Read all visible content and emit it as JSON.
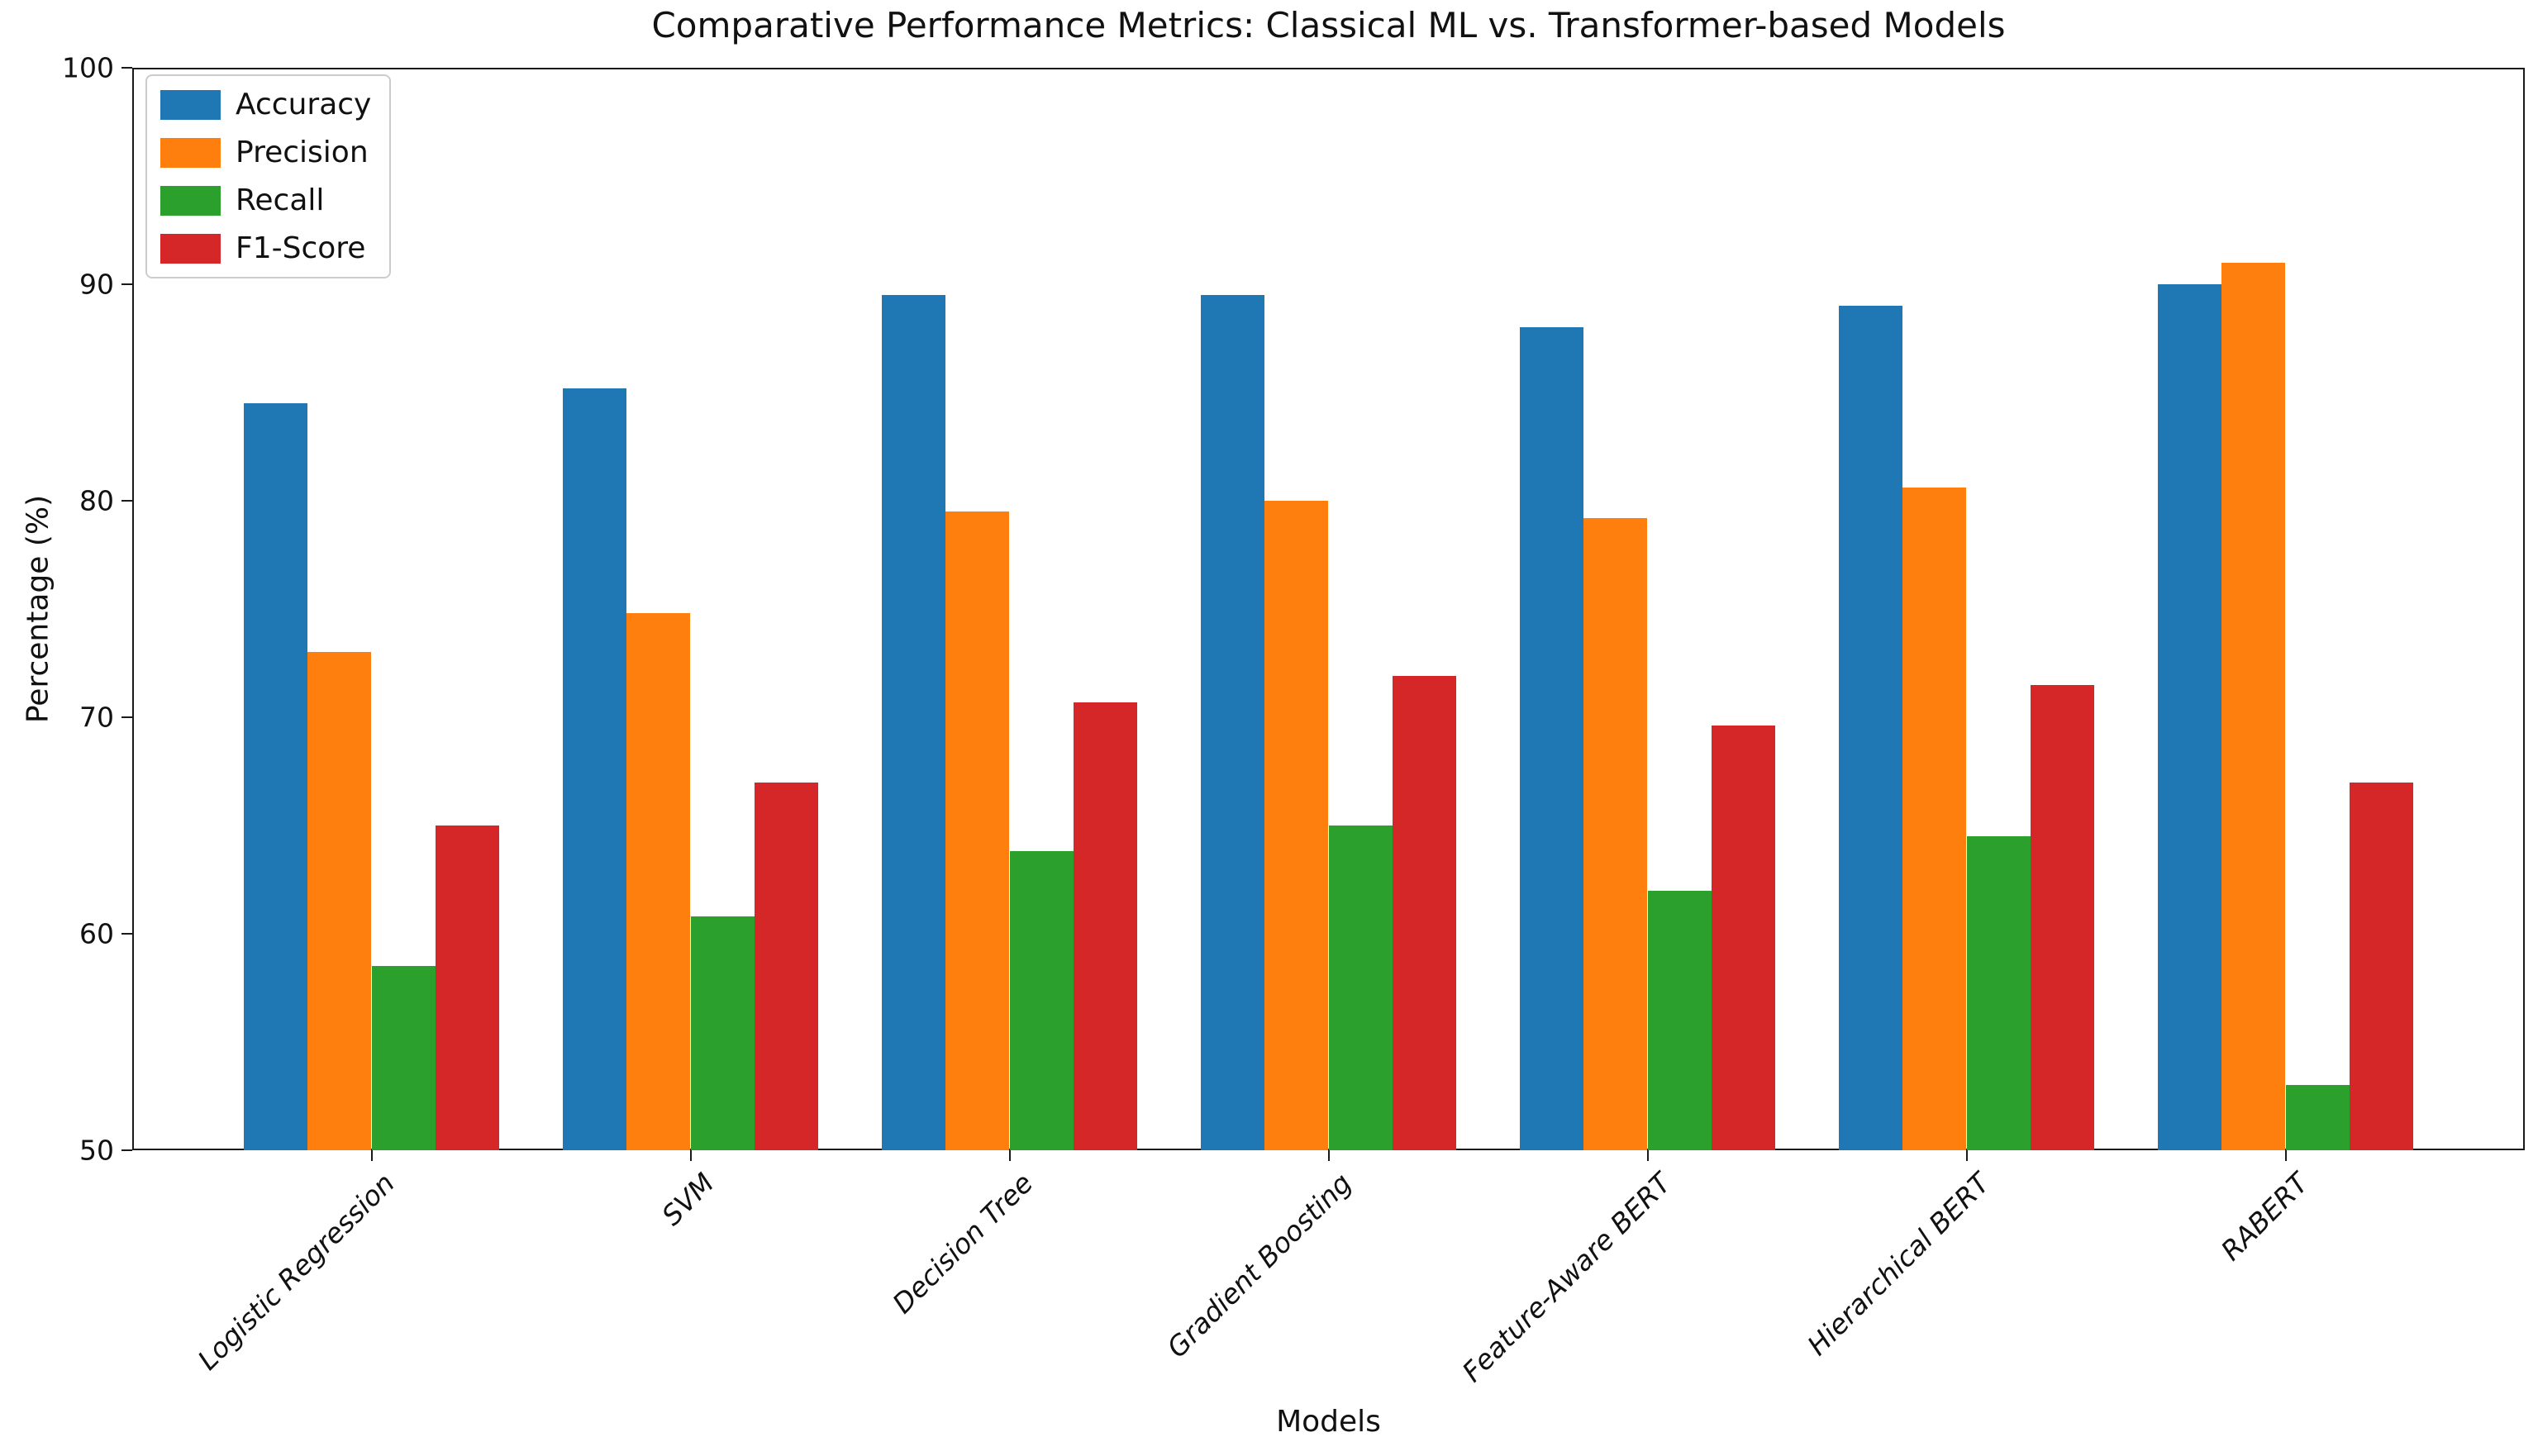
{
  "figure": {
    "background": "#ffffff",
    "spine_color": "#1a1a1a"
  },
  "chart_data": {
    "type": "bar",
    "title": "Comparative Performance Metrics: Classical ML vs. Transformer-based Models",
    "xlabel": "Models",
    "ylabel": "Percentage (%)",
    "ylim": [
      50,
      100
    ],
    "yticks": [
      "50",
      "60",
      "70",
      "80",
      "90",
      "100"
    ],
    "grid": false,
    "legend_position": "upper left",
    "bar_width": 0.2,
    "categories": [
      "Logistic Regression",
      "SVM",
      "Decision Tree",
      "Gradient Boosting",
      "Feature-Aware BERT",
      "Hierarchical BERT",
      "RABERT"
    ],
    "series": [
      {
        "name": "Accuracy",
        "color": "#1f77b4",
        "values": [
          84.5,
          85.2,
          89.5,
          89.5,
          88.0,
          89.0,
          90.0
        ]
      },
      {
        "name": "Precision",
        "color": "#ff7f0e",
        "values": [
          73.0,
          74.8,
          79.5,
          80.0,
          79.2,
          80.6,
          91.0
        ]
      },
      {
        "name": "Recall",
        "color": "#2ca02c",
        "values": [
          58.5,
          60.8,
          63.8,
          65.0,
          62.0,
          64.5,
          53.0
        ]
      },
      {
        "name": "F1-Score",
        "color": "#d62728",
        "values": [
          65.0,
          67.0,
          70.7,
          71.9,
          69.6,
          71.5,
          67.0
        ]
      }
    ]
  }
}
